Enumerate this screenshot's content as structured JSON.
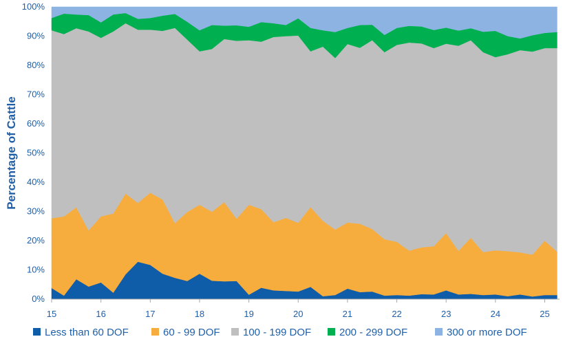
{
  "chart_data": {
    "type": "area",
    "stacked": true,
    "percent": true,
    "title": "",
    "xlabel": "",
    "ylabel": "Percentage of Cattle",
    "ylim": [
      0,
      100
    ],
    "xlim": [
      15,
      25.3
    ],
    "y_ticks": [
      0,
      10,
      20,
      30,
      40,
      50,
      60,
      70,
      80,
      90,
      100
    ],
    "y_tick_labels": [
      "0%",
      "10%",
      "20%",
      "30%",
      "40%",
      "50%",
      "60%",
      "70%",
      "80%",
      "90%",
      "100%"
    ],
    "x_ticks": [
      15,
      16,
      17,
      18,
      19,
      20,
      21,
      22,
      23,
      24,
      25
    ],
    "x_tick_labels": [
      "15",
      "16",
      "17",
      "18",
      "19",
      "20",
      "21",
      "22",
      "23",
      "24",
      "25"
    ],
    "grid": false,
    "legend_position": "bottom",
    "x": [
      15.0,
      15.25,
      15.5,
      15.75,
      16.0,
      16.25,
      16.5,
      16.75,
      17.0,
      17.25,
      17.5,
      17.75,
      18.0,
      18.25,
      18.5,
      18.75,
      19.0,
      19.25,
      19.5,
      19.75,
      20.0,
      20.25,
      20.5,
      20.75,
      21.0,
      21.25,
      21.5,
      21.75,
      22.0,
      22.25,
      22.5,
      22.75,
      23.0,
      23.25,
      23.5,
      23.75,
      24.0,
      24.25,
      24.5,
      24.75,
      25.0,
      25.25
    ],
    "series": [
      {
        "name": "Less than 60 DOF",
        "color": "#0f5ca8",
        "values": [
          3.8,
          1.2,
          6.8,
          4.3,
          5.7,
          2.2,
          8.5,
          12.8,
          11.7,
          8.7,
          7.3,
          6.2,
          8.7,
          6.3,
          6.1,
          6.2,
          1.5,
          3.9,
          3.0,
          2.8,
          2.6,
          4.2,
          1.0,
          1.4,
          3.6,
          2.4,
          2.6,
          1.2,
          1.4,
          1.2,
          1.7,
          1.6,
          3.0,
          1.6,
          1.8,
          1.4,
          1.6,
          1.0,
          1.6,
          0.9,
          1.4,
          1.4
        ]
      },
      {
        "name": "60 - 99 DOF",
        "color": "#f7ad3d",
        "values": [
          23.9,
          27.1,
          24.6,
          19.2,
          22.6,
          27.1,
          27.6,
          20.1,
          24.7,
          25.4,
          18.7,
          23.6,
          23.6,
          23.6,
          27.1,
          21.3,
          30.8,
          26.9,
          23.3,
          25.0,
          23.5,
          27.3,
          25.8,
          22.4,
          22.6,
          23.4,
          21.4,
          19.3,
          18.2,
          15.4,
          16.0,
          16.5,
          19.6,
          14.9,
          19.2,
          14.7,
          15.1,
          15.4,
          14.4,
          14.3,
          18.6,
          14.8
        ]
      },
      {
        "name": "100 - 199 DOF",
        "color": "#bfbfbf",
        "values": [
          64.3,
          62.4,
          61.3,
          68.1,
          61.1,
          62.3,
          58.3,
          59.3,
          55.8,
          57.7,
          66.8,
          59.0,
          52.5,
          55.7,
          55.8,
          60.9,
          56.3,
          57.3,
          63.4,
          62.2,
          64.1,
          53.3,
          59.6,
          58.7,
          61.1,
          60.2,
          64.6,
          64.0,
          67.4,
          71.2,
          69.8,
          67.8,
          64.8,
          70.2,
          67.6,
          68.4,
          66.1,
          67.4,
          69.2,
          69.5,
          65.9,
          69.7
        ]
      },
      {
        "name": "200 - 299 DOF",
        "color": "#00b050",
        "values": [
          4.2,
          7.0,
          4.7,
          5.6,
          5.3,
          5.8,
          3.5,
          3.7,
          4.0,
          5.2,
          4.8,
          6.1,
          7.2,
          8.2,
          4.6,
          5.3,
          4.6,
          6.7,
          4.7,
          3.8,
          5.9,
          8.0,
          5.6,
          8.9,
          5.5,
          7.8,
          5.3,
          5.9,
          5.8,
          5.7,
          5.8,
          6.2,
          5.5,
          5.2,
          4.1,
          7.0,
          9.0,
          6.2,
          4.0,
          5.6,
          5.2,
          5.5
        ]
      },
      {
        "name": "300 or more DOF",
        "color": "#8db3e2",
        "values": [
          3.8,
          2.3,
          2.6,
          2.8,
          5.3,
          2.6,
          2.1,
          4.1,
          3.8,
          3.0,
          2.4,
          5.1,
          8.0,
          6.2,
          6.4,
          6.3,
          6.8,
          5.2,
          5.6,
          6.2,
          3.9,
          7.2,
          8.0,
          8.6,
          7.2,
          6.2,
          6.1,
          9.6,
          7.2,
          6.5,
          6.7,
          7.9,
          7.1,
          8.1,
          7.3,
          8.5,
          8.2,
          10.0,
          10.8,
          9.7,
          8.9,
          8.6
        ]
      }
    ]
  }
}
